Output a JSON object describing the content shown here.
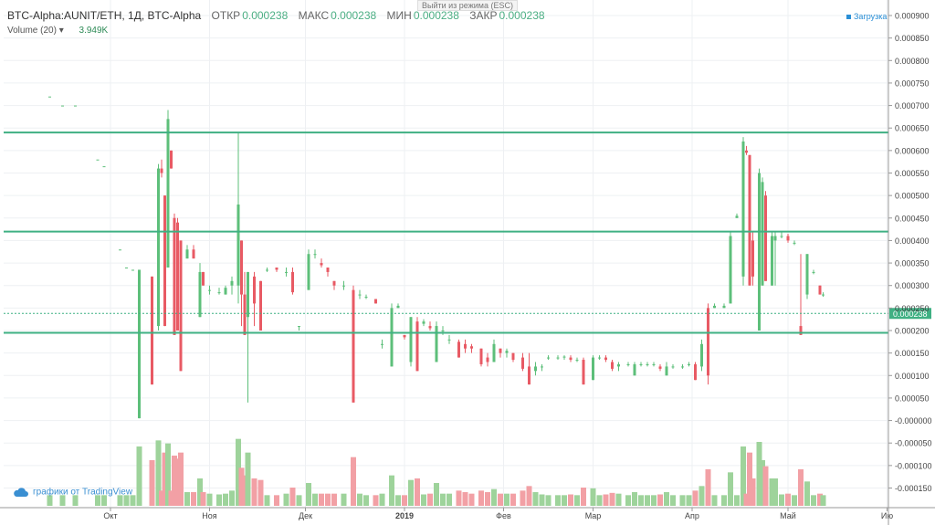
{
  "header": {
    "symbol": "BTC-Alpha:AUNIT/ETH, 1Д, BTC-Alpha",
    "open_label": "ОТКР",
    "open": "0.000238",
    "high_label": "МАКС",
    "high": "0.000238",
    "low_label": "МИН",
    "low": "0.000238",
    "close_label": "ЗАКР",
    "close": "0.000238"
  },
  "volume_legend": {
    "label": "Volume (20)",
    "arrow": "▾",
    "value": "3.949K"
  },
  "tooltip": "Выйти из режима (ESC)",
  "load_label": "Загрузка",
  "branding": "графики от TradingView",
  "colors": {
    "up": "#5dbf7a",
    "down": "#e85a64",
    "up_vol": "#9ed39b",
    "down_vol": "#f2a0a5",
    "hline": "#3fb083",
    "price_tag": "#3fb083"
  },
  "chart_data": {
    "type": "candlestick",
    "y_ticks": [
      "0.000900",
      "0.000850",
      "0.000800",
      "0.000750",
      "0.000700",
      "0.000650",
      "0.000600",
      "0.000550",
      "0.000500",
      "0.000450",
      "0.000400",
      "0.000350",
      "0.000300",
      "0.000250",
      "0.000200",
      "0.000150",
      "0.000100",
      "0.000050",
      "-0.000000",
      "-0.000050",
      "-0.000100",
      "-0.000150"
    ],
    "ylim": [
      -0.000175,
      0.000925
    ],
    "x_ticks": [
      "Окт",
      "Ноя",
      "Дек",
      "2019",
      "Фев",
      "Мар",
      "Апр",
      "Май",
      "Ию"
    ],
    "last_price": 0.000238,
    "last_price_label": "0.000238",
    "horizontal_levels": [
      0.00064,
      0.00042,
      0.000195
    ],
    "candles": [
      {
        "d": "2018-09-12",
        "o": 0.00072,
        "h": 0.00072,
        "l": 0.00072,
        "c": 0.00072
      },
      {
        "d": "2018-09-16",
        "o": 0.0007,
        "h": 0.0007,
        "l": 0.0007,
        "c": 0.0007
      },
      {
        "d": "2018-09-20",
        "o": 0.0007,
        "h": 0.0007,
        "l": 0.0007,
        "c": 0.0007
      },
      {
        "d": "2018-09-27",
        "o": 0.00058,
        "h": 0.00058,
        "l": 0.00058,
        "c": 0.00058
      },
      {
        "d": "2018-09-29",
        "o": 0.000565,
        "h": 0.000565,
        "l": 0.000565,
        "c": 0.000565
      },
      {
        "d": "2018-10-04",
        "o": 0.00038,
        "h": 0.00038,
        "l": 0.00038,
        "c": 0.00038
      },
      {
        "d": "2018-10-06",
        "o": 0.00034,
        "h": 0.00034,
        "l": 0.00034,
        "c": 0.00034
      },
      {
        "d": "2018-10-08",
        "o": 0.000335,
        "h": 0.000335,
        "l": 0.000335,
        "c": 0.000335
      },
      {
        "d": "2018-10-10",
        "o": 5e-06,
        "h": 0.000335,
        "l": 5e-06,
        "c": 0.000335
      },
      {
        "d": "2018-10-14",
        "o": 0.00032,
        "h": 0.00032,
        "l": 8e-05,
        "c": 8e-05
      },
      {
        "d": "2018-10-16",
        "o": 0.00021,
        "h": 0.00057,
        "l": 0.0002,
        "c": 0.00056
      },
      {
        "d": "2018-10-17",
        "o": 0.00056,
        "h": 0.00058,
        "l": 0.00054,
        "c": 0.00055
      },
      {
        "d": "2018-10-18",
        "o": 0.0005,
        "h": 0.0005,
        "l": 0.00021,
        "c": 0.00021
      },
      {
        "d": "2018-10-19",
        "o": 0.00034,
        "h": 0.00069,
        "l": 0.00034,
        "c": 0.00067
      },
      {
        "d": "2018-10-20",
        "o": 0.0006,
        "h": 0.0006,
        "l": 0.00056,
        "c": 0.00056
      },
      {
        "d": "2018-10-21",
        "o": 0.00045,
        "h": 0.00046,
        "l": 0.00019,
        "c": 0.00019
      },
      {
        "d": "2018-10-22",
        "o": 0.00044,
        "h": 0.00045,
        "l": 0.0002,
        "c": 0.0002
      },
      {
        "d": "2018-10-23",
        "o": 0.0004,
        "h": 0.0004,
        "l": 0.00011,
        "c": 0.00011
      },
      {
        "d": "2018-10-25",
        "o": 0.00036,
        "h": 0.00039,
        "l": 0.00036,
        "c": 0.00038
      },
      {
        "d": "2018-10-27",
        "o": 0.00038,
        "h": 0.00039,
        "l": 0.00036,
        "c": 0.00036
      },
      {
        "d": "2018-10-29",
        "o": 0.00023,
        "h": 0.00035,
        "l": 0.00023,
        "c": 0.00033
      },
      {
        "d": "2018-10-30",
        "o": 0.00033,
        "h": 0.00033,
        "l": 0.0003,
        "c": 0.0003
      },
      {
        "d": "2018-11-01",
        "o": 0.00029,
        "h": 0.0003,
        "l": 0.00028,
        "c": 0.00029
      },
      {
        "d": "2018-11-04",
        "o": 0.000285,
        "h": 0.000295,
        "l": 0.00028,
        "c": 0.000285
      },
      {
        "d": "2018-11-06",
        "o": 0.00028,
        "h": 0.0003,
        "l": 0.00028,
        "c": 0.000295
      },
      {
        "d": "2018-11-08",
        "o": 0.0003,
        "h": 0.00032,
        "l": 0.00028,
        "c": 0.00031
      },
      {
        "d": "2018-11-10",
        "o": 0.0003,
        "h": 0.00064,
        "l": 0.00026,
        "c": 0.00048
      },
      {
        "d": "2018-11-11",
        "o": 0.0004,
        "h": 0.0004,
        "l": 0.00021,
        "c": 0.00028
      },
      {
        "d": "2018-11-12",
        "o": 0.00028,
        "h": 0.00033,
        "l": 0.00019,
        "c": 0.00019
      },
      {
        "d": "2018-11-13",
        "o": 0.00023,
        "h": 0.00033,
        "l": 4e-05,
        "c": 0.00033
      },
      {
        "d": "2018-11-15",
        "o": 0.00032,
        "h": 0.00033,
        "l": 0.00021,
        "c": 0.00026
      },
      {
        "d": "2018-11-17",
        "o": 0.00031,
        "h": 0.00031,
        "l": 0.0002,
        "c": 0.0002
      },
      {
        "d": "2018-11-19",
        "o": 0.000335,
        "h": 0.00034,
        "l": 0.00033,
        "c": 0.000335
      },
      {
        "d": "2018-11-22",
        "o": 0.00034,
        "h": 0.00034,
        "l": 0.00033,
        "c": 0.000335
      },
      {
        "d": "2018-11-25",
        "o": 0.00033,
        "h": 0.00034,
        "l": 0.00032,
        "c": 0.00033
      },
      {
        "d": "2018-11-27",
        "o": 0.00033,
        "h": 0.00034,
        "l": 0.00028,
        "c": 0.000285
      },
      {
        "d": "2018-11-29",
        "o": 0.00021,
        "h": 0.00021,
        "l": 0.0002,
        "c": 0.00021
      },
      {
        "d": "2018-12-02",
        "o": 0.00029,
        "h": 0.00038,
        "l": 0.00029,
        "c": 0.00037
      },
      {
        "d": "2018-12-04",
        "o": 0.00037,
        "h": 0.00038,
        "l": 0.00036,
        "c": 0.00037
      },
      {
        "d": "2018-12-06",
        "o": 0.00035,
        "h": 0.00036,
        "l": 0.00034,
        "c": 0.000345
      },
      {
        "d": "2018-12-08",
        "o": 0.00034,
        "h": 0.00034,
        "l": 0.00032,
        "c": 0.00033
      },
      {
        "d": "2018-12-10",
        "o": 0.00031,
        "h": 0.00031,
        "l": 0.00029,
        "c": 0.0003
      },
      {
        "d": "2018-12-13",
        "o": 0.0003,
        "h": 0.00031,
        "l": 0.00029,
        "c": 0.0003
      },
      {
        "d": "2018-12-16",
        "o": 0.00029,
        "h": 0.0003,
        "l": 4e-05,
        "c": 4e-05
      },
      {
        "d": "2018-12-18",
        "o": 0.00028,
        "h": 0.00029,
        "l": 0.00027,
        "c": 0.00028
      },
      {
        "d": "2018-12-20",
        "o": 0.000275,
        "h": 0.00028,
        "l": 0.00027,
        "c": 0.000275
      },
      {
        "d": "2018-12-23",
        "o": 0.00027,
        "h": 0.00027,
        "l": 0.00026,
        "c": 0.00026
      },
      {
        "d": "2018-12-25",
        "o": 0.00017,
        "h": 0.00018,
        "l": 0.00016,
        "c": 0.00017
      },
      {
        "d": "2018-12-28",
        "o": 0.00012,
        "h": 0.00026,
        "l": 0.00012,
        "c": 0.00025
      },
      {
        "d": "2018-12-30",
        "o": 0.00025,
        "h": 0.00026,
        "l": 0.00025,
        "c": 0.000255
      },
      {
        "d": "2019-01-01",
        "o": 0.00019,
        "h": 0.00019,
        "l": 0.00018,
        "c": 0.000185
      },
      {
        "d": "2019-01-03",
        "o": 0.00013,
        "h": 0.00023,
        "l": 0.00012,
        "c": 0.00023
      },
      {
        "d": "2019-01-05",
        "o": 0.00022,
        "h": 0.00023,
        "l": 0.00011,
        "c": 0.00011
      },
      {
        "d": "2019-01-07",
        "o": 0.000215,
        "h": 0.000225,
        "l": 0.00021,
        "c": 0.00022
      },
      {
        "d": "2019-01-09",
        "o": 0.00021,
        "h": 0.00022,
        "l": 0.0002,
        "c": 0.000205
      },
      {
        "d": "2019-01-11",
        "o": 0.00013,
        "h": 0.00022,
        "l": 0.00013,
        "c": 0.00021
      },
      {
        "d": "2019-01-13",
        "o": 0.0002,
        "h": 0.00021,
        "l": 0.00019,
        "c": 0.0002
      },
      {
        "d": "2019-01-15",
        "o": 0.00018,
        "h": 0.00019,
        "l": 0.00017,
        "c": 0.00018
      },
      {
        "d": "2019-01-18",
        "o": 0.000175,
        "h": 0.00018,
        "l": 0.00014,
        "c": 0.00014
      },
      {
        "d": "2019-01-20",
        "o": 0.00017,
        "h": 0.00018,
        "l": 0.00015,
        "c": 0.00016
      },
      {
        "d": "2019-01-22",
        "o": 0.000165,
        "h": 0.00017,
        "l": 0.00015,
        "c": 0.00016
      },
      {
        "d": "2019-01-25",
        "o": 0.00016,
        "h": 0.00016,
        "l": 0.00012,
        "c": 0.000125
      },
      {
        "d": "2019-01-27",
        "o": 0.00014,
        "h": 0.00015,
        "l": 0.00012,
        "c": 0.00013
      },
      {
        "d": "2019-01-29",
        "o": 0.00013,
        "h": 0.00018,
        "l": 0.00013,
        "c": 0.00017
      },
      {
        "d": "2019-01-31",
        "o": 0.00016,
        "h": 0.00016,
        "l": 0.00014,
        "c": 0.00015
      },
      {
        "d": "2019-02-02",
        "o": 0.00015,
        "h": 0.00016,
        "l": 0.00014,
        "c": 0.000155
      },
      {
        "d": "2019-02-04",
        "o": 0.00015,
        "h": 0.00015,
        "l": 0.00013,
        "c": 0.000135
      },
      {
        "d": "2019-02-07",
        "o": 0.00014,
        "h": 0.00015,
        "l": 0.00011,
        "c": 0.000115
      },
      {
        "d": "2019-02-09",
        "o": 0.00012,
        "h": 0.00015,
        "l": 8e-05,
        "c": 8e-05
      },
      {
        "d": "2019-02-11",
        "o": 0.00011,
        "h": 0.00013,
        "l": 0.0001,
        "c": 0.00012
      },
      {
        "d": "2019-02-13",
        "o": 0.00012,
        "h": 0.000125,
        "l": 0.00011,
        "c": 0.00012
      },
      {
        "d": "2019-02-15",
        "o": 0.00014,
        "h": 0.000145,
        "l": 0.000135,
        "c": 0.00014
      },
      {
        "d": "2019-02-18",
        "o": 0.00014,
        "h": 0.000145,
        "l": 0.000135,
        "c": 0.00014
      },
      {
        "d": "2019-02-20",
        "o": 0.00014,
        "h": 0.000145,
        "l": 0.000135,
        "c": 0.000142
      },
      {
        "d": "2019-02-22",
        "o": 0.00014,
        "h": 0.000145,
        "l": 0.00013,
        "c": 0.000135
      },
      {
        "d": "2019-02-24",
        "o": 0.000135,
        "h": 0.00014,
        "l": 0.00013,
        "c": 0.000135
      },
      {
        "d": "2019-02-26",
        "o": 0.000135,
        "h": 0.00014,
        "l": 8e-05,
        "c": 8e-05
      },
      {
        "d": "2019-03-01",
        "o": 9e-05,
        "h": 0.000145,
        "l": 9e-05,
        "c": 0.00014
      },
      {
        "d": "2019-03-03",
        "o": 0.00014,
        "h": 0.000145,
        "l": 0.000135,
        "c": 0.00014
      },
      {
        "d": "2019-03-05",
        "o": 0.00014,
        "h": 0.000145,
        "l": 0.00013,
        "c": 0.000135
      },
      {
        "d": "2019-03-07",
        "o": 0.00013,
        "h": 0.000135,
        "l": 0.00011,
        "c": 0.000115
      },
      {
        "d": "2019-03-09",
        "o": 0.00012,
        "h": 0.00013,
        "l": 0.00011,
        "c": 0.000125
      },
      {
        "d": "2019-03-12",
        "o": 0.000125,
        "h": 0.00013,
        "l": 0.00012,
        "c": 0.000125
      },
      {
        "d": "2019-03-14",
        "o": 0.0001,
        "h": 0.00013,
        "l": 0.0001,
        "c": 0.000125
      },
      {
        "d": "2019-03-16",
        "o": 0.000125,
        "h": 0.00013,
        "l": 0.00012,
        "c": 0.000125
      },
      {
        "d": "2019-03-18",
        "o": 0.000125,
        "h": 0.00013,
        "l": 0.00012,
        "c": 0.000125
      },
      {
        "d": "2019-03-20",
        "o": 0.000125,
        "h": 0.00013,
        "l": 0.00012,
        "c": 0.000125
      },
      {
        "d": "2019-03-22",
        "o": 0.00012,
        "h": 0.000125,
        "l": 0.00011,
        "c": 0.000115
      },
      {
        "d": "2019-03-24",
        "o": 0.0001,
        "h": 0.00013,
        "l": 0.0001,
        "c": 0.00012
      },
      {
        "d": "2019-03-26",
        "o": 0.00012,
        "h": 0.000125,
        "l": 0.000115,
        "c": 0.00012
      },
      {
        "d": "2019-03-29",
        "o": 0.00012,
        "h": 0.000125,
        "l": 0.000115,
        "c": 0.00012
      },
      {
        "d": "2019-03-31",
        "o": 0.000125,
        "h": 0.00013,
        "l": 0.00012,
        "c": 0.000125
      },
      {
        "d": "2019-04-02",
        "o": 0.000125,
        "h": 0.00013,
        "l": 9e-05,
        "c": 9e-05
      },
      {
        "d": "2019-04-04",
        "o": 0.00012,
        "h": 0.00018,
        "l": 0.00011,
        "c": 0.00017
      },
      {
        "d": "2019-04-06",
        "o": 0.00025,
        "h": 0.00026,
        "l": 8e-05,
        "c": 0.0001
      },
      {
        "d": "2019-04-08",
        "o": 0.00025,
        "h": 0.00026,
        "l": 0.00025,
        "c": 0.000255
      },
      {
        "d": "2019-04-11",
        "o": 0.00025,
        "h": 0.00026,
        "l": 0.00025,
        "c": 0.000255
      },
      {
        "d": "2019-04-13",
        "o": 0.00026,
        "h": 0.00042,
        "l": 0.00026,
        "c": 0.00041
      },
      {
        "d": "2019-04-15",
        "o": 0.00045,
        "h": 0.00046,
        "l": 0.00045,
        "c": 0.000455
      },
      {
        "d": "2019-04-17",
        "o": 0.00032,
        "h": 0.00063,
        "l": 0.0003,
        "c": 0.00062
      },
      {
        "d": "2019-04-18",
        "o": 0.0006,
        "h": 0.00061,
        "l": 0.00059,
        "c": 0.000595
      },
      {
        "d": "2019-04-19",
        "o": 0.00059,
        "h": 0.00059,
        "l": 0.0003,
        "c": 0.0003
      },
      {
        "d": "2019-04-20",
        "o": 0.0004,
        "h": 0.00042,
        "l": 0.0003,
        "c": 0.00032
      },
      {
        "d": "2019-04-22",
        "o": 0.0002,
        "h": 0.00056,
        "l": 0.0002,
        "c": 0.00055
      },
      {
        "d": "2019-04-23",
        "o": 0.0003,
        "h": 0.00054,
        "l": 0.0003,
        "c": 0.00053
      },
      {
        "d": "2019-04-24",
        "o": 0.0005,
        "h": 0.00051,
        "l": 0.00031,
        "c": 0.00031
      },
      {
        "d": "2019-04-26",
        "o": 0.0003,
        "h": 0.00042,
        "l": 0.0003,
        "c": 0.00041
      },
      {
        "d": "2019-04-27",
        "o": 0.0004,
        "h": 0.00042,
        "l": 0.0003,
        "c": 0.00041
      },
      {
        "d": "2019-04-29",
        "o": 0.00041,
        "h": 0.00042,
        "l": 0.000405,
        "c": 0.00041
      },
      {
        "d": "2019-05-01",
        "o": 0.00041,
        "h": 0.000415,
        "l": 0.000395,
        "c": 0.0004
      },
      {
        "d": "2019-05-03",
        "o": 0.000395,
        "h": 0.0004,
        "l": 0.00039,
        "c": 0.000395
      },
      {
        "d": "2019-05-05",
        "o": 0.00021,
        "h": 0.00037,
        "l": 0.00019,
        "c": 0.00019
      },
      {
        "d": "2019-05-07",
        "o": 0.00028,
        "h": 0.00037,
        "l": 0.00027,
        "c": 0.00037
      },
      {
        "d": "2019-05-09",
        "o": 0.00033,
        "h": 0.000335,
        "l": 0.000325,
        "c": 0.00033
      },
      {
        "d": "2019-05-11",
        "o": 0.0003,
        "h": 0.0003,
        "l": 0.00028,
        "c": 0.00028
      },
      {
        "d": "2019-05-12",
        "o": 0.00028,
        "h": 0.000285,
        "l": 0.000275,
        "c": 0.00028
      }
    ]
  }
}
